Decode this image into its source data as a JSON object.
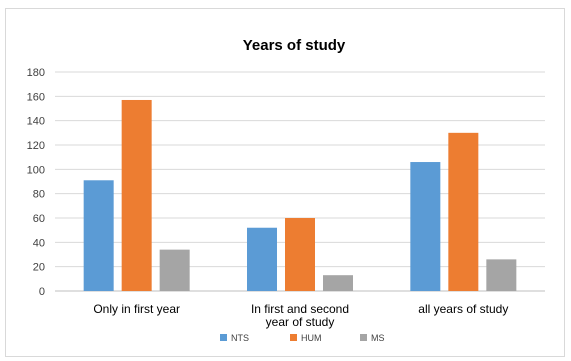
{
  "chart_data": {
    "type": "bar",
    "title": "Years of study",
    "xlabel": "",
    "ylabel": "",
    "categories": [
      [
        "Only in first year"
      ],
      [
        "In first and second",
        "year of study"
      ],
      [
        "all years of study"
      ]
    ],
    "series": [
      {
        "name": "NTS",
        "values": [
          91,
          52,
          106
        ],
        "color": "#5b9bd5"
      },
      {
        "name": "HUM",
        "values": [
          157,
          60,
          130
        ],
        "color": "#ed7d31"
      },
      {
        "name": "MS",
        "values": [
          34,
          13,
          26
        ],
        "color": "#a5a5a5"
      }
    ],
    "ylim": [
      0,
      180
    ],
    "yticks": [
      0,
      20,
      40,
      60,
      80,
      100,
      120,
      140,
      160,
      180
    ],
    "grid": true,
    "legend": "bottom"
  }
}
